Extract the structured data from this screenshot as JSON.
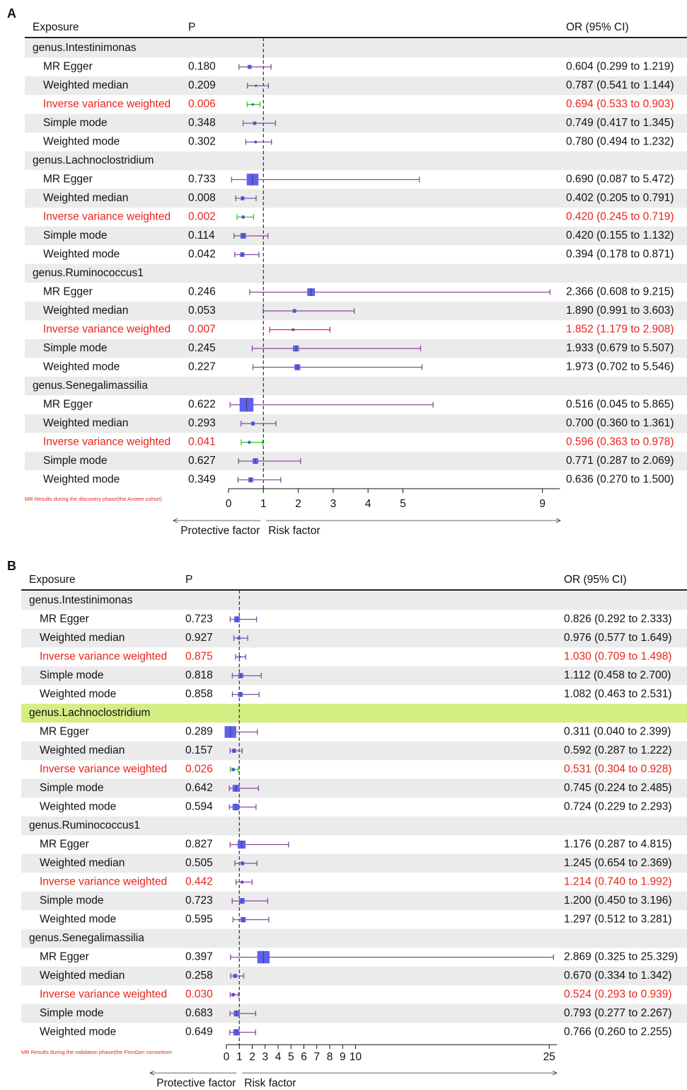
{
  "chart_data": [
    {
      "type": "forest",
      "panel": "A",
      "columns": [
        "Exposure",
        "P",
        "OR (95% CI)"
      ],
      "xlim": [
        0,
        9.5
      ],
      "xticks": [
        0,
        1,
        2,
        3,
        4,
        5,
        9
      ],
      "reference_line": 1,
      "note": "MR Results during the discovery phase(the Anstee cohort)",
      "arrow_labels": [
        "Protective factor",
        "Risk factor"
      ],
      "stripe_color": "#ebebeb",
      "box_color": "#6060ee",
      "line_color": "#8a4a9a",
      "highlight_text_color": "#e8231c",
      "groups": [
        {
          "name": "genus.Intestinimonas",
          "rows": [
            {
              "method": "MR Egger",
              "p": "0.180",
              "or": 0.604,
              "lo": 0.299,
              "hi": 1.219,
              "label": "0.604 (0.299 to 1.219)"
            },
            {
              "method": "Weighted median",
              "p": "0.209",
              "or": 0.787,
              "lo": 0.541,
              "hi": 1.144,
              "label": "0.787 (0.541 to 1.144)"
            },
            {
              "method": "Inverse variance weighted",
              "p": "0.006",
              "or": 0.694,
              "lo": 0.533,
              "hi": 0.903,
              "label": "0.694 (0.533 to 0.903)",
              "highlight": true,
              "ci_color": "#22cc22"
            },
            {
              "method": "Simple mode",
              "p": "0.348",
              "or": 0.749,
              "lo": 0.417,
              "hi": 1.345,
              "label": "0.749 (0.417 to 1.345)"
            },
            {
              "method": "Weighted mode",
              "p": "0.302",
              "or": 0.78,
              "lo": 0.494,
              "hi": 1.232,
              "label": "0.780 (0.494 to 1.232)"
            }
          ]
        },
        {
          "name": "genus.Lachnoclostridium",
          "rows": [
            {
              "method": "MR Egger",
              "p": "0.733",
              "or": 0.69,
              "lo": 0.087,
              "hi": 5.472,
              "label": "0.690 (0.087 to 5.472)"
            },
            {
              "method": "Weighted median",
              "p": "0.008",
              "or": 0.402,
              "lo": 0.205,
              "hi": 0.791,
              "label": "0.402 (0.205 to 0.791)"
            },
            {
              "method": "Inverse variance weighted",
              "p": "0.002",
              "or": 0.42,
              "lo": 0.245,
              "hi": 0.719,
              "label": "0.420 (0.245 to 0.719)",
              "highlight": true,
              "ci_color": "#22cc22"
            },
            {
              "method": "Simple mode",
              "p": "0.114",
              "or": 0.42,
              "lo": 0.155,
              "hi": 1.132,
              "label": "0.420 (0.155 to 1.132)"
            },
            {
              "method": "Weighted mode",
              "p": "0.042",
              "or": 0.394,
              "lo": 0.178,
              "hi": 0.871,
              "label": "0.394 (0.178 to 0.871)"
            }
          ]
        },
        {
          "name": "genus.Ruminococcus1",
          "rows": [
            {
              "method": "MR Egger",
              "p": "0.246",
              "or": 2.366,
              "lo": 0.608,
              "hi": 9.215,
              "label": "2.366 (0.608 to 9.215)"
            },
            {
              "method": "Weighted median",
              "p": "0.053",
              "or": 1.89,
              "lo": 0.991,
              "hi": 3.603,
              "label": "1.890 (0.991 to 3.603)"
            },
            {
              "method": "Inverse variance weighted",
              "p": "0.007",
              "or": 1.852,
              "lo": 1.179,
              "hi": 2.908,
              "label": "1.852 (1.179 to 2.908)",
              "highlight": true,
              "ci_color": "#ee2222"
            },
            {
              "method": "Simple mode",
              "p": "0.245",
              "or": 1.933,
              "lo": 0.679,
              "hi": 5.507,
              "label": "1.933 (0.679 to 5.507)"
            },
            {
              "method": "Weighted mode",
              "p": "0.227",
              "or": 1.973,
              "lo": 0.702,
              "hi": 5.546,
              "label": "1.973 (0.702 to 5.546)"
            }
          ]
        },
        {
          "name": "genus.Senegalimassilia",
          "rows": [
            {
              "method": "MR Egger",
              "p": "0.622",
              "or": 0.516,
              "lo": 0.045,
              "hi": 5.865,
              "label": "0.516 (0.045 to 5.865)"
            },
            {
              "method": "Weighted median",
              "p": "0.293",
              "or": 0.7,
              "lo": 0.36,
              "hi": 1.361,
              "label": "0.700 (0.360 to 1.361)"
            },
            {
              "method": "Inverse variance weighted",
              "p": "0.041",
              "or": 0.596,
              "lo": 0.363,
              "hi": 0.978,
              "label": "0.596 (0.363 to 0.978)",
              "highlight": true,
              "ci_color": "#22cc22"
            },
            {
              "method": "Simple mode",
              "p": "0.627",
              "or": 0.771,
              "lo": 0.287,
              "hi": 2.069,
              "label": "0.771 (0.287 to 2.069)"
            },
            {
              "method": "Weighted mode",
              "p": "0.349",
              "or": 0.636,
              "lo": 0.27,
              "hi": 1.5,
              "label": "0.636 (0.270 to 1.500)"
            }
          ]
        }
      ]
    },
    {
      "type": "forest",
      "panel": "B",
      "columns": [
        "Exposure",
        "P",
        "OR (95% CI)"
      ],
      "xlim": [
        0,
        25.6
      ],
      "xticks": [
        0,
        1,
        2,
        3,
        4,
        5,
        6,
        7,
        8,
        9,
        10,
        25
      ],
      "reference_line": 1,
      "note": "MR Results during the validation phase(the FinnGen consortium",
      "arrow_labels": [
        "Protective factor",
        "Risk factor"
      ],
      "stripe_color": "#ebebeb",
      "box_color": "#6060ee",
      "line_color": "#8a4a9a",
      "highlight_text_color": "#e8231c",
      "groups": [
        {
          "name": "genus.Intestinimonas",
          "rows": [
            {
              "method": "MR Egger",
              "p": "0.723",
              "or": 0.826,
              "lo": 0.292,
              "hi": 2.333,
              "label": "0.826 (0.292 to 2.333)"
            },
            {
              "method": "Weighted median",
              "p": "0.927",
              "or": 0.976,
              "lo": 0.577,
              "hi": 1.649,
              "label": "0.976 (0.577 to 1.649)"
            },
            {
              "method": "Inverse variance weighted",
              "p": "0.875",
              "or": 1.03,
              "lo": 0.709,
              "hi": 1.498,
              "label": "1.030 (0.709 to 1.498)",
              "highlight": true
            },
            {
              "method": "Simple mode",
              "p": "0.818",
              "or": 1.112,
              "lo": 0.458,
              "hi": 2.7,
              "label": "1.112 (0.458 to 2.700)"
            },
            {
              "method": "Weighted mode",
              "p": "0.858",
              "or": 1.082,
              "lo": 0.463,
              "hi": 2.531,
              "label": "1.082 (0.463 to 2.531)"
            }
          ]
        },
        {
          "name": "genus.Lachnoclostridium",
          "background": "#d4ee84",
          "rows": [
            {
              "method": "MR Egger",
              "p": "0.289",
              "or": 0.311,
              "lo": 0.04,
              "hi": 2.399,
              "label": "0.311 (0.040 to 2.399)"
            },
            {
              "method": "Weighted median",
              "p": "0.157",
              "or": 0.592,
              "lo": 0.287,
              "hi": 1.222,
              "label": "0.592 (0.287 to 1.222)"
            },
            {
              "method": "Inverse variance weighted",
              "p": "0.026",
              "or": 0.531,
              "lo": 0.304,
              "hi": 0.928,
              "label": "0.531 (0.304 to 0.928)",
              "highlight": true,
              "ci_color": "#22cc22"
            },
            {
              "method": "Simple mode",
              "p": "0.642",
              "or": 0.745,
              "lo": 0.224,
              "hi": 2.485,
              "label": "0.745 (0.224 to 2.485)"
            },
            {
              "method": "Weighted mode",
              "p": "0.594",
              "or": 0.724,
              "lo": 0.229,
              "hi": 2.293,
              "label": "0.724 (0.229 to 2.293)"
            }
          ]
        },
        {
          "name": "genus.Ruminococcus1",
          "rows": [
            {
              "method": "MR Egger",
              "p": "0.827",
              "or": 1.176,
              "lo": 0.287,
              "hi": 4.815,
              "label": "1.176 (0.287 to 4.815)"
            },
            {
              "method": "Weighted median",
              "p": "0.505",
              "or": 1.245,
              "lo": 0.654,
              "hi": 2.369,
              "label": "1.245 (0.654 to 2.369)"
            },
            {
              "method": "Inverse variance weighted",
              "p": "0.442",
              "or": 1.214,
              "lo": 0.74,
              "hi": 1.992,
              "label": "1.214 (0.740 to 1.992)",
              "highlight": true
            },
            {
              "method": "Simple mode",
              "p": "0.723",
              "or": 1.2,
              "lo": 0.45,
              "hi": 3.196,
              "label": "1.200 (0.450 to 3.196)"
            },
            {
              "method": "Weighted mode",
              "p": "0.595",
              "or": 1.297,
              "lo": 0.512,
              "hi": 3.281,
              "label": "1.297 (0.512 to 3.281)"
            }
          ]
        },
        {
          "name": "genus.Senegalimassilia",
          "rows": [
            {
              "method": "MR Egger",
              "p": "0.397",
              "or": 2.869,
              "lo": 0.325,
              "hi": 25.329,
              "label": "2.869 (0.325 to 25.329)"
            },
            {
              "method": "Weighted median",
              "p": "0.258",
              "or": 0.67,
              "lo": 0.334,
              "hi": 1.342,
              "label": "0.670 (0.334 to 1.342)"
            },
            {
              "method": "Inverse variance weighted",
              "p": "0.030",
              "or": 0.524,
              "lo": 0.293,
              "hi": 0.939,
              "label": "0.524 (0.293 to 0.939)",
              "highlight": true
            },
            {
              "method": "Simple mode",
              "p": "0.683",
              "or": 0.793,
              "lo": 0.277,
              "hi": 2.267,
              "label": "0.793 (0.277 to 2.267)"
            },
            {
              "method": "Weighted mode",
              "p": "0.649",
              "or": 0.766,
              "lo": 0.26,
              "hi": 2.255,
              "label": "0.766 (0.260 to 2.255)"
            }
          ]
        }
      ]
    }
  ]
}
